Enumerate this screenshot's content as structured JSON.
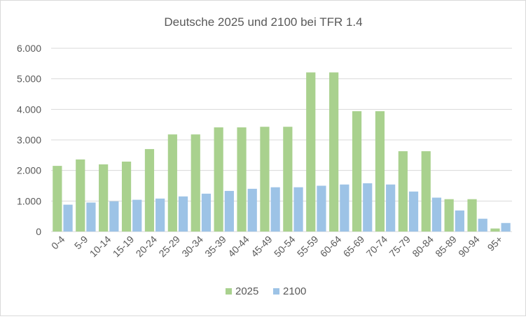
{
  "chart_data": {
    "type": "bar",
    "title": "Deutsche 2025 und 2100 bei TFR 1.4",
    "xlabel": "",
    "ylabel": "",
    "ylim": [
      0,
      6000
    ],
    "y_ticks": [
      0,
      1000,
      2000,
      3000,
      4000,
      5000,
      6000
    ],
    "y_tick_labels": [
      "0",
      "1.000",
      "2.000",
      "3.000",
      "4.000",
      "5.000",
      "6.000"
    ],
    "grid": true,
    "legend_position": "bottom",
    "categories": [
      "0-4",
      "5-9",
      "10-14",
      "15-19",
      "20-24",
      "25-29",
      "30-34",
      "35-39",
      "40-44",
      "45-49",
      "50-54",
      "55-59",
      "60-64",
      "65-69",
      "70-74",
      "75-79",
      "80-84",
      "85-89",
      "90-94",
      "95+"
    ],
    "series": [
      {
        "name": "2025",
        "color": "#a9d18e",
        "values": [
          2150,
          2360,
          2200,
          2290,
          2700,
          3180,
          3180,
          3410,
          3410,
          3430,
          3430,
          5210,
          5210,
          3940,
          3940,
          2630,
          2630,
          1060,
          1060,
          100
        ]
      },
      {
        "name": "2100",
        "color": "#9dc3e6",
        "values": [
          880,
          950,
          990,
          1040,
          1080,
          1150,
          1240,
          1330,
          1400,
          1450,
          1450,
          1500,
          1540,
          1580,
          1540,
          1310,
          1110,
          690,
          420,
          280
        ]
      }
    ]
  }
}
